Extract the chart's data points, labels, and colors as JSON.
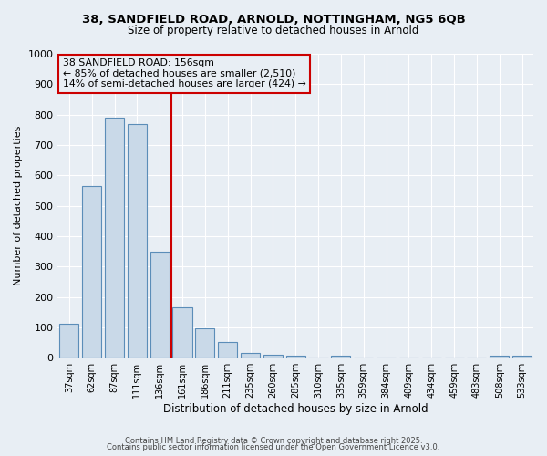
{
  "title": "38, SANDFIELD ROAD, ARNOLD, NOTTINGHAM, NG5 6QB",
  "subtitle": "Size of property relative to detached houses in Arnold",
  "xlabel": "Distribution of detached houses by size in Arnold",
  "ylabel": "Number of detached properties",
  "categories": [
    "37sqm",
    "62sqm",
    "87sqm",
    "111sqm",
    "136sqm",
    "161sqm",
    "186sqm",
    "211sqm",
    "235sqm",
    "260sqm",
    "285sqm",
    "310sqm",
    "335sqm",
    "359sqm",
    "384sqm",
    "409sqm",
    "434sqm",
    "459sqm",
    "483sqm",
    "508sqm",
    "533sqm"
  ],
  "values": [
    112,
    565,
    790,
    770,
    350,
    165,
    96,
    52,
    15,
    11,
    8,
    0,
    7,
    0,
    0,
    0,
    0,
    0,
    0,
    7,
    7
  ],
  "bar_color": "#c9d9e8",
  "bar_edge_color": "#5b8db8",
  "background_color": "#e8eef4",
  "grid_color": "#ffffff",
  "annotation_text_line1": "38 SANDFIELD ROAD: 156sqm",
  "annotation_text_line2": "← 85% of detached houses are smaller (2,510)",
  "annotation_text_line3": "14% of semi-detached houses are larger (424) →",
  "annotation_box_color": "#cc0000",
  "vline_x": 4.5,
  "ylim": [
    0,
    1000
  ],
  "yticks": [
    0,
    100,
    200,
    300,
    400,
    500,
    600,
    700,
    800,
    900,
    1000
  ],
  "footer_line1": "Contains HM Land Registry data © Crown copyright and database right 2025.",
  "footer_line2": "Contains public sector information licensed under the Open Government Licence v3.0."
}
